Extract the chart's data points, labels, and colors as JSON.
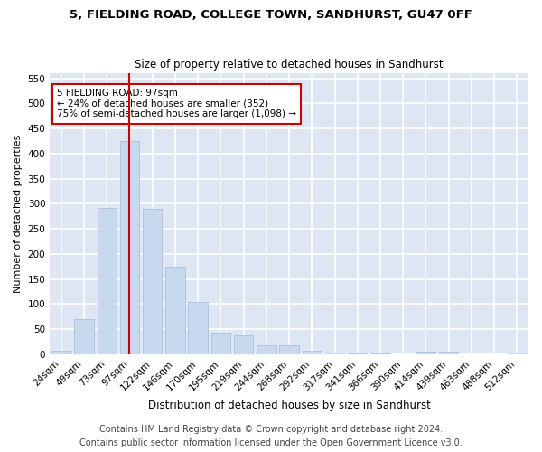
{
  "title1": "5, FIELDING ROAD, COLLEGE TOWN, SANDHURST, GU47 0FF",
  "title2": "Size of property relative to detached houses in Sandhurst",
  "xlabel": "Distribution of detached houses by size in Sandhurst",
  "ylabel": "Number of detached properties",
  "categories": [
    "24sqm",
    "49sqm",
    "73sqm",
    "97sqm",
    "122sqm",
    "146sqm",
    "170sqm",
    "195sqm",
    "219sqm",
    "244sqm",
    "268sqm",
    "292sqm",
    "317sqm",
    "341sqm",
    "366sqm",
    "390sqm",
    "414sqm",
    "439sqm",
    "463sqm",
    "488sqm",
    "512sqm"
  ],
  "values": [
    8,
    70,
    292,
    425,
    290,
    175,
    105,
    43,
    38,
    18,
    18,
    7,
    3,
    1,
    1,
    0,
    5,
    5,
    0,
    0,
    4
  ],
  "bar_color": "#c8d9ee",
  "bar_edge_color": "#aac0db",
  "vline_x": 3,
  "vline_color": "#cc0000",
  "annotation_text": "5 FIELDING ROAD: 97sqm\n← 24% of detached houses are smaller (352)\n75% of semi-detached houses are larger (1,098) →",
  "annotation_box_color": "#ffffff",
  "annotation_box_edge": "#cc0000",
  "ylim": [
    0,
    560
  ],
  "yticks": [
    0,
    50,
    100,
    150,
    200,
    250,
    300,
    350,
    400,
    450,
    500,
    550
  ],
  "footer1": "Contains HM Land Registry data © Crown copyright and database right 2024.",
  "footer2": "Contains public sector information licensed under the Open Government Licence v3.0.",
  "plot_bg_color": "#dde6f2",
  "fig_bg_color": "#ffffff",
  "grid_color": "#ffffff",
  "title1_fontsize": 9.5,
  "title2_fontsize": 8.5,
  "xlabel_fontsize": 8.5,
  "ylabel_fontsize": 8,
  "tick_fontsize": 7.5,
  "annotation_fontsize": 7.5,
  "footer_fontsize": 7
}
